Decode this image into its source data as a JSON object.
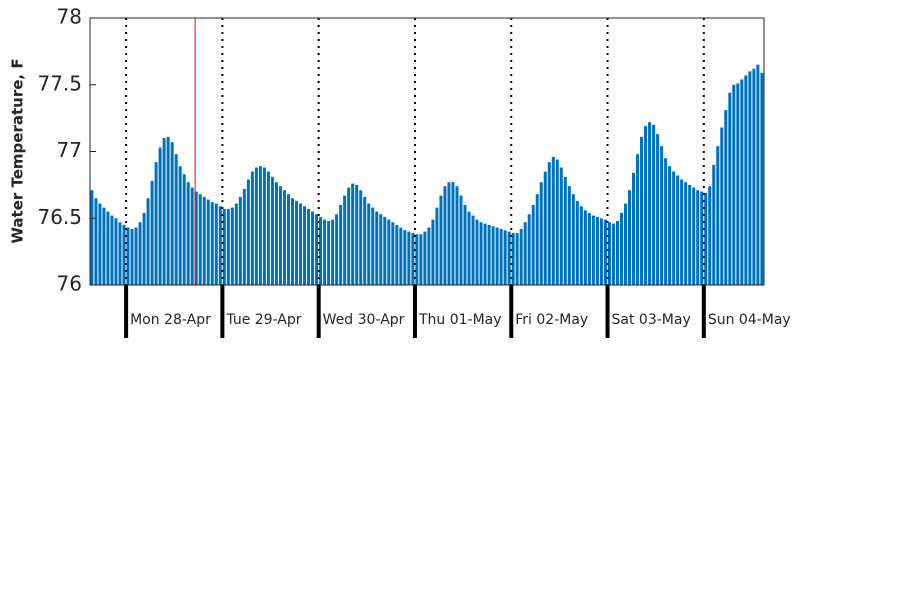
{
  "chart_data": {
    "type": "bar",
    "ylabel": "Water Temperature, F",
    "color": "#0072bd",
    "xlim": [
      0,
      168
    ],
    "ylim": [
      76,
      78
    ],
    "yticks": [
      76,
      76.5,
      77,
      77.5,
      78
    ],
    "xticks": [
      9,
      33,
      57,
      81,
      105,
      129,
      153
    ],
    "xtick_labels": [
      "Mon 28-Apr",
      "Tue 29-Apr",
      "Wed 30-Apr",
      "Thu 01-May",
      "Fri 02-May",
      "Sat 03-May",
      "Sun 04-May"
    ],
    "vline": {
      "x": 26.2,
      "color": "#ff0000"
    },
    "values": [
      76.71,
      76.65,
      76.61,
      76.58,
      76.55,
      76.52,
      76.5,
      76.47,
      76.45,
      76.43,
      76.42,
      76.43,
      76.47,
      76.54,
      76.65,
      76.78,
      76.92,
      77.03,
      77.1,
      77.11,
      77.07,
      76.98,
      76.89,
      76.83,
      76.77,
      76.73,
      76.7,
      76.68,
      76.66,
      76.64,
      76.62,
      76.61,
      76.59,
      76.57,
      76.57,
      76.58,
      76.61,
      76.66,
      76.72,
      76.79,
      76.85,
      76.88,
      76.89,
      76.88,
      76.85,
      76.81,
      76.77,
      76.74,
      76.71,
      76.68,
      76.65,
      76.63,
      76.61,
      76.59,
      76.57,
      76.55,
      76.53,
      76.51,
      76.49,
      76.48,
      76.49,
      76.53,
      76.6,
      76.67,
      76.73,
      76.76,
      76.75,
      76.71,
      76.66,
      76.61,
      76.58,
      76.55,
      76.53,
      76.51,
      76.49,
      76.47,
      76.45,
      76.43,
      76.41,
      76.4,
      76.39,
      76.38,
      76.38,
      76.4,
      76.43,
      76.49,
      76.58,
      76.67,
      76.74,
      76.77,
      76.77,
      76.74,
      76.67,
      76.6,
      76.55,
      76.52,
      76.49,
      76.47,
      76.46,
      76.45,
      76.44,
      76.43,
      76.42,
      76.41,
      76.4,
      76.39,
      76.39,
      76.42,
      76.47,
      76.53,
      76.6,
      76.68,
      76.77,
      76.85,
      76.92,
      76.96,
      76.94,
      76.88,
      76.81,
      76.74,
      76.68,
      76.63,
      76.59,
      76.56,
      76.54,
      76.52,
      76.51,
      76.5,
      76.49,
      76.47,
      76.46,
      76.48,
      76.54,
      76.61,
      76.71,
      76.84,
      76.98,
      77.11,
      77.19,
      77.22,
      77.2,
      77.13,
      77.04,
      76.95,
      76.89,
      76.85,
      76.82,
      76.79,
      76.77,
      76.75,
      76.73,
      76.71,
      76.7,
      76.69,
      76.74,
      76.9,
      77.04,
      77.18,
      77.31,
      77.44,
      77.5,
      77.51,
      77.54,
      77.57,
      77.6,
      77.62,
      77.65,
      77.59
    ]
  }
}
